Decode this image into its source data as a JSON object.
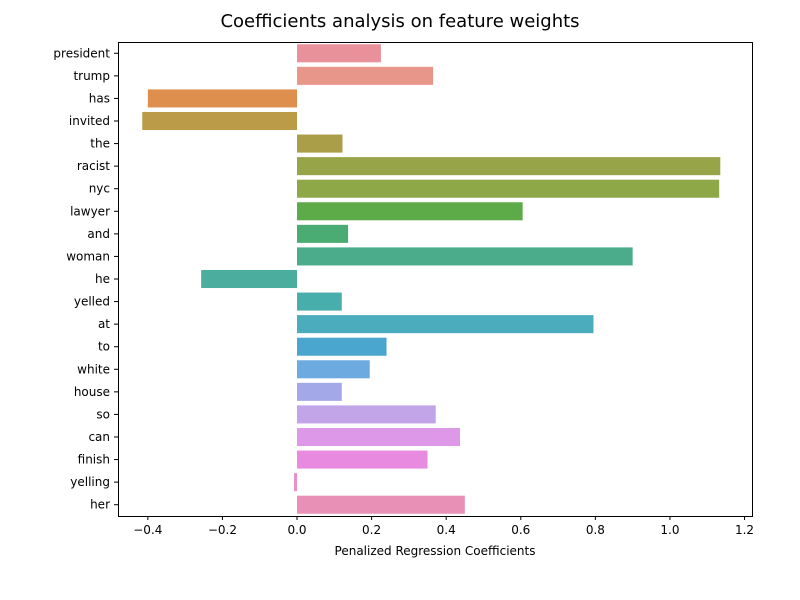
{
  "chart_data": {
    "type": "bar",
    "orientation": "horizontal",
    "title": "Coefficients analysis on feature weights",
    "xlabel": "Penalized Regression Coefficients",
    "ylabel": "",
    "xlim": [
      -0.48,
      1.22
    ],
    "xticks": [
      -0.4,
      -0.2,
      0.0,
      0.2,
      0.4,
      0.6,
      0.8,
      1.0,
      1.2
    ],
    "xtick_labels": [
      "−0.4",
      "−0.2",
      "0.0",
      "0.2",
      "0.4",
      "0.6",
      "0.8",
      "1.0",
      "1.2"
    ],
    "grid": false,
    "categories": [
      "president",
      "trump",
      "has",
      "invited",
      "the",
      "racist",
      "nyc",
      "lawyer",
      "and",
      "woman",
      "he",
      "yelled",
      "at",
      "to",
      "white",
      "house",
      "so",
      "can",
      "finish",
      "yelling",
      "her"
    ],
    "values": [
      0.225,
      0.365,
      -0.4,
      -0.415,
      0.122,
      1.135,
      1.132,
      0.605,
      0.137,
      0.9,
      -0.257,
      0.12,
      0.795,
      0.24,
      0.195,
      0.12,
      0.372,
      0.437,
      0.35,
      -0.008,
      0.45
    ],
    "colors": [
      "#e8919b",
      "#e8968a",
      "#de8f4e",
      "#bb9b48",
      "#aa9e48",
      "#98a448",
      "#8ea848",
      "#5caa48",
      "#4aac72",
      "#4aac8a",
      "#4aad9d",
      "#48aeab",
      "#4aacbc",
      "#4aa6cf",
      "#6caae0",
      "#a3a8e8",
      "#c2a4e8",
      "#de98e8",
      "#e88be0",
      "#e890c8",
      "#e890b6"
    ]
  }
}
